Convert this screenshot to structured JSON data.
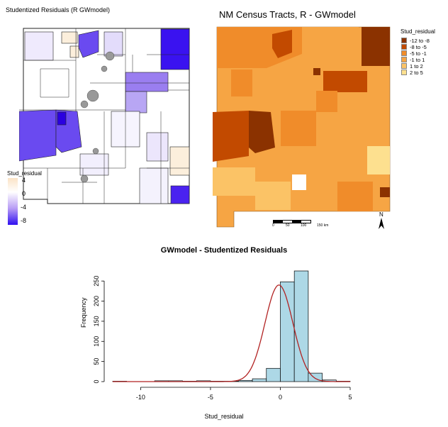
{
  "left_map": {
    "title": "Studentized Residuals (R GWmodel)",
    "legend": {
      "title": "Stud_residual",
      "ticks": [
        "4",
        "0",
        "-4",
        "-8"
      ],
      "gradient_colors": [
        "#fbe3c6",
        "#ffffff",
        "#b79cf5",
        "#3010f0"
      ]
    }
  },
  "right_map": {
    "title": "NM Census Tracts, R - GWmodel",
    "legend": {
      "title": "Stud_residual",
      "classes": [
        {
          "label": "-12 to -8",
          "color": "#8b3200"
        },
        {
          "label": "-8 to -5",
          "color": "#c24a00"
        },
        {
          "label": "-5 to -1",
          "color": "#f08c2a"
        },
        {
          "label": "-1 to 1",
          "color": "#f6a544"
        },
        {
          "label": "1 to 2",
          "color": "#fbc366"
        },
        {
          "label": "2 to 5",
          "color": "#fde08f"
        }
      ]
    },
    "scalebar": {
      "labels": [
        "0",
        "50",
        "100",
        "150 km"
      ]
    },
    "north_label": "N"
  },
  "chart_data": {
    "type": "bar",
    "title": "GWmodel - Studentized Residuals",
    "xlabel": "Stud_residual",
    "ylabel": "Frequency",
    "xlim": [
      -12,
      5
    ],
    "ylim": [
      0,
      275
    ],
    "x_ticks": [
      -10,
      -5,
      0,
      5
    ],
    "y_ticks": [
      0,
      50,
      100,
      150,
      200,
      250
    ],
    "bin_edges": [
      -12,
      -11,
      -10,
      -9,
      -8,
      -7,
      -6,
      -5,
      -4,
      -3,
      -2,
      -1,
      0,
      1,
      2,
      3,
      4,
      5
    ],
    "counts": [
      1,
      0,
      0,
      2,
      2,
      1,
      2,
      1,
      1,
      3,
      7,
      33,
      248,
      275,
      21,
      4,
      1
    ],
    "bar_color": "#add8e6",
    "density_color": "#b22222",
    "density": {
      "mean": -0.1,
      "sd": 1.0,
      "n": 602
    }
  }
}
